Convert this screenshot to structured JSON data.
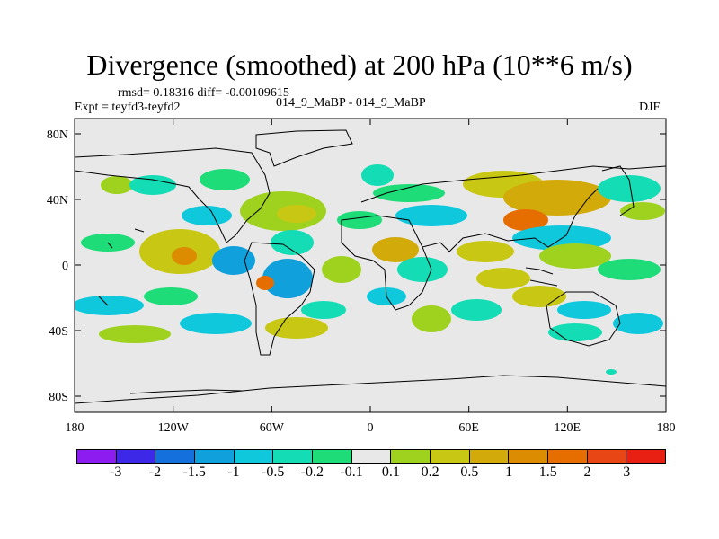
{
  "title": "Divergence (smoothed) at 200 hPa (10**6 m/s)",
  "stats": {
    "rmsd_text": "rmsd= 0.18316 diff= -0.00109615"
  },
  "experiment": "Expt = teyfd3-teyfd2",
  "subtitle": "014_9_MaBP - 014_9_MaBP",
  "season": "DJF",
  "map": {
    "background_color": "#e8e8e8",
    "lat_ticks": [
      "80N",
      "40N",
      "0",
      "40S",
      "80S"
    ],
    "lon_ticks": [
      "180",
      "120W",
      "60W",
      "0",
      "60E",
      "120E",
      "180"
    ]
  },
  "colorbar": {
    "colors": [
      "#8c1cf0",
      "#3c28e6",
      "#1470dc",
      "#10a0dc",
      "#10c8dc",
      "#14dcb4",
      "#1edc78",
      "#e8e8e8",
      "#9ed21e",
      "#c8c814",
      "#d2aa0a",
      "#dc8c00",
      "#e66e00",
      "#e84614",
      "#e82014"
    ],
    "labels": [
      "-3",
      "-2",
      "-1.5",
      "-1",
      "-0.5",
      "-0.2",
      "-0.1",
      "0.1",
      "0.2",
      "0.5",
      "1",
      "1.5",
      "2",
      "3"
    ]
  }
}
